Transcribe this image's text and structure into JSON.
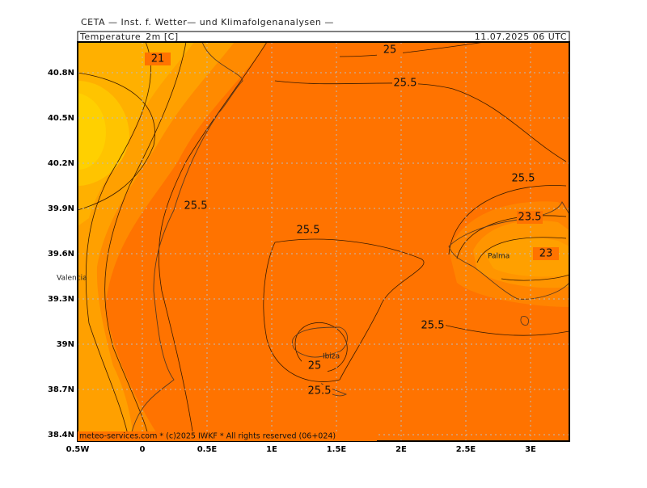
{
  "header": {
    "institute": "CETA — Inst. f. Wetter— und Klimafolgenanalysen —",
    "title": "Temperature_2m [C]",
    "timestamp": "11.07.2025 06 UTC"
  },
  "map": {
    "x_ticks": [
      "0.5W",
      "0",
      "0.5E",
      "1E",
      "1.5E",
      "2E",
      "2.5E",
      "3E"
    ],
    "y_ticks": [
      "40.8N",
      "40.5N",
      "40.2N",
      "39.9N",
      "39.6N",
      "39.3N",
      "39N",
      "38.7N",
      "38.4N"
    ],
    "contour_labels": [
      "21",
      "25",
      "25.5",
      "25.5",
      "25.5",
      "23.5",
      "25.5",
      "23",
      "25.5",
      "25",
      "25.5"
    ],
    "places": [
      "Palma",
      "Valencia",
      "Ibiza"
    ]
  },
  "footer": "meteo-services.com * (c)2025 IWKF * All rights reserved (06+024)"
}
